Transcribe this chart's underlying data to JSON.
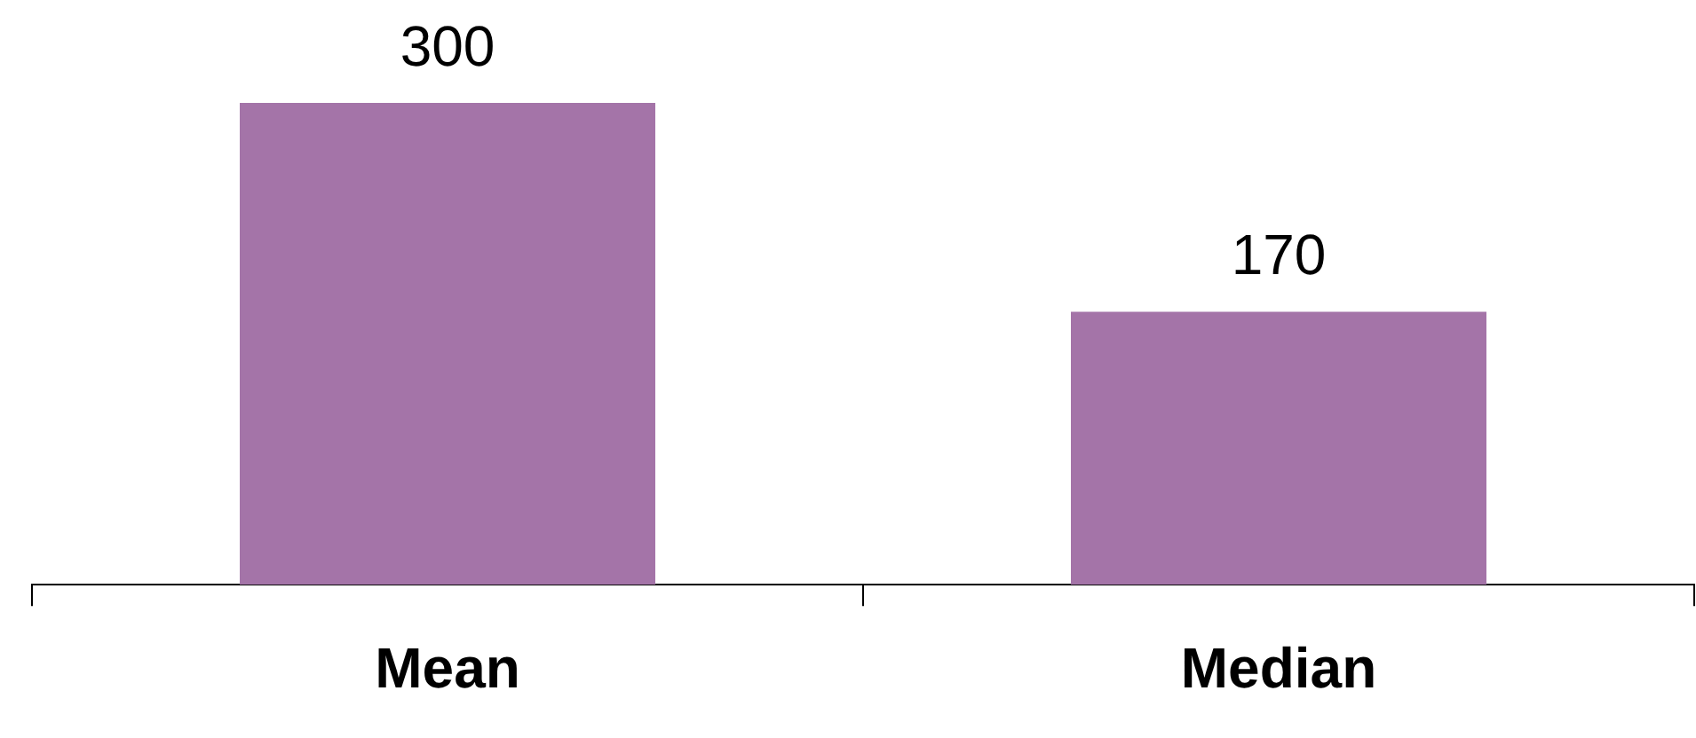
{
  "chart_data": {
    "type": "bar",
    "categories": [
      "Mean",
      "Median"
    ],
    "values": [
      300,
      170
    ],
    "color": "#a474a8",
    "data_labels": true
  }
}
